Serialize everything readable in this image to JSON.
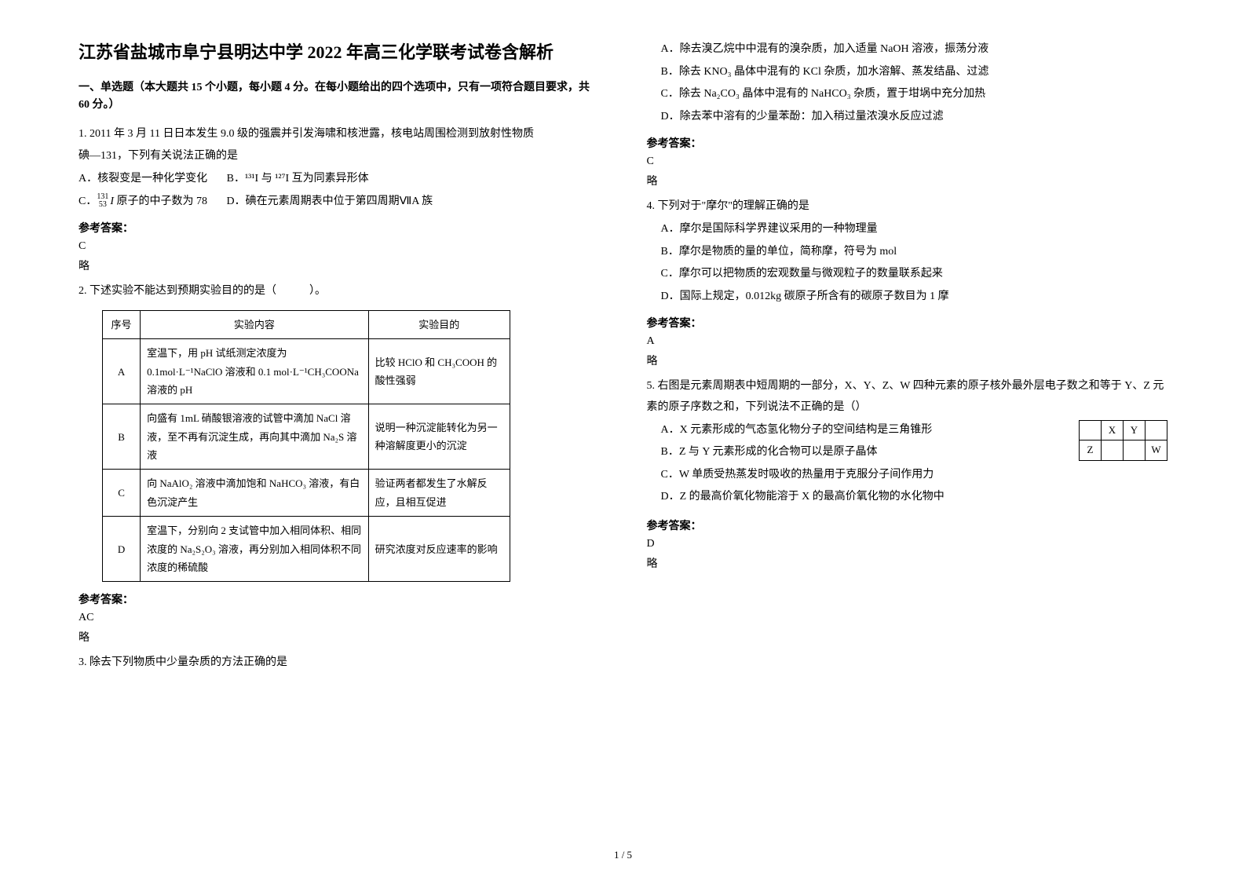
{
  "title": "江苏省盐城市阜宁县明达中学 2022 年高三化学联考试卷含解析",
  "section_header": "一、单选题（本大题共 15 个小题，每小题 4 分。在每小题给出的四个选项中，只有一项符合题目要求，共 60 分。）",
  "q1": {
    "stem_a": "1. 2011 年 3 月 11 日日本发生 9.0 级的强震并引发海啸和核泄露，核电站周围检测到放射性物质",
    "stem_b": "碘—131，下列有关说法正确的是",
    "opt_a": "A．核裂变是一种化学变化",
    "opt_b": "B．¹³¹I 与 ¹²⁷I 互为同素异形体",
    "opt_c_suffix": " 原子的中子数为 78",
    "opt_d": "D．碘在元素周期表中位于第四周期ⅦA 族",
    "answer_label": "参考答案：",
    "answer": "C",
    "omit": "略"
  },
  "q2": {
    "stem": "2. 下述实验不能达到预期实验目的的是（　　　）。",
    "table": {
      "header": [
        "序号",
        "实验内容",
        "实验目的"
      ],
      "rows": [
        {
          "seq": "A",
          "content": "室温下，用 pH 试纸测定浓度为 0.1mol·L⁻¹NaClO 溶液和 0.1 mol·L⁻¹CH₃COONa 溶液的 pH",
          "purpose": "比较 HClO 和 CH₃COOH 的酸性强弱"
        },
        {
          "seq": "B",
          "content": "向盛有 1mL 硝酸银溶液的试管中滴加 NaCl 溶液，至不再有沉淀生成，再向其中滴加 Na₂S 溶液",
          "purpose": "说明一种沉淀能转化为另一种溶解度更小的沉淀"
        },
        {
          "seq": "C",
          "content": "向 NaAlO₂ 溶液中滴加饱和 NaHCO₃ 溶液，有白色沉淀产生",
          "purpose": "验证两者都发生了水解反应，且相互促进"
        },
        {
          "seq": "D",
          "content": "室温下，分别向 2 支试管中加入相同体积、相同浓度的 Na₂S₂O₃ 溶液，再分别加入相同体积不同浓度的稀硫酸",
          "purpose": "研究浓度对反应速率的影响"
        }
      ]
    },
    "answer_label": "参考答案：",
    "answer": "AC",
    "omit": "略"
  },
  "q3": {
    "stem": "3. 除去下列物质中少量杂质的方法正确的是",
    "opt_a": "A．除去溴乙烷中中混有的溴杂质，加入适量 NaOH 溶液，振荡分液",
    "opt_b": "B．除去 KNO₃ 晶体中混有的 KCl 杂质，加水溶解、蒸发结晶、过滤",
    "opt_c": "C．除去 Na₂CO₃ 晶体中混有的 NaHCO₃ 杂质，置于坩埚中充分加热",
    "opt_d": "D．除去苯中溶有的少量苯酚：加入稍过量浓溴水反应过滤",
    "answer_label": "参考答案：",
    "answer": "C",
    "omit": "略"
  },
  "q4": {
    "stem": "4. 下列对于\"摩尔\"的理解正确的是",
    "opt_a": "A．摩尔是国际科学界建议采用的一种物理量",
    "opt_b": "B．摩尔是物质的量的单位，简称摩，符号为 mol",
    "opt_c": "C．摩尔可以把物质的宏观数量与微观粒子的数量联系起来",
    "opt_d": "D．国际上规定，0.012kg 碳原子所含有的碳原子数目为 1 摩",
    "answer_label": "参考答案：",
    "answer": "A",
    "omit": "略"
  },
  "q5": {
    "stem": "5. 右图是元素周期表中短周期的一部分，X、Y、Z、W 四种元素的原子核外最外层电子数之和等于 Y、Z 元素的原子序数之和，下列说法不正确的是（）",
    "table": [
      [
        "",
        "X",
        "Y",
        ""
      ],
      [
        "Z",
        "",
        "",
        "W"
      ]
    ],
    "opt_a": "A．X 元素形成的气态氢化物分子的空间结构是三角锥形",
    "opt_b": "B．Z 与 Y 元素形成的化合物可以是原子晶体",
    "opt_c": "C．W 单质受热蒸发时吸收的热量用于克服分子间作用力",
    "opt_d": "D．Z 的最高价氧化物能溶于 X 的最高价氧化物的水化物中",
    "answer_label": "参考答案：",
    "answer": "D",
    "omit": "略"
  },
  "page_num": "1 / 5",
  "style": {
    "bg": "#ffffff",
    "text": "#000000",
    "border": "#000000",
    "title_fontsize": 22,
    "body_fontsize": 14,
    "table_fontsize": 13,
    "line_height": 1.9
  }
}
